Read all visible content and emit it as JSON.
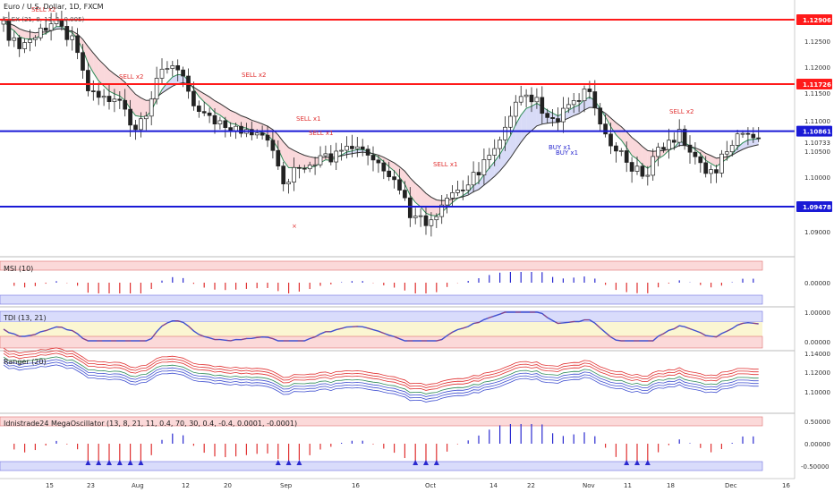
{
  "main": {
    "title": "Euro / U.S. Dollar, 1D, FXCM",
    "indicator": "CLEX (21, 8, 13, 1, 0.005)",
    "price_axis": [
      "1.12500",
      "1.12000",
      "1.11500",
      "1.11000",
      "1.10500",
      "1.10000",
      "1.09000"
    ],
    "price_tag_current": "1.10733",
    "levels": [
      {
        "value": 1.12906,
        "label": "1.12906",
        "color": "#ff1a1a"
      },
      {
        "value": 1.11726,
        "label": "1.11726",
        "color": "#ff1a1a"
      },
      {
        "value": 1.10861,
        "label": "1.10861",
        "color": "#1a1ad6"
      },
      {
        "value": 1.09478,
        "label": "1.09478",
        "color": "#1a1ad6"
      }
    ],
    "annotations": [
      {
        "text": "SELL x2"
      },
      {
        "text": "SELL x2"
      },
      {
        "text": "SELL x2"
      },
      {
        "text": "SELL x1"
      },
      {
        "text": "SELL x1"
      },
      {
        "text": "SELL x1"
      },
      {
        "text": "SELL x2"
      },
      {
        "text": "BUY x1"
      },
      {
        "text": "BUY x1"
      }
    ]
  },
  "panels": [
    {
      "title": "MSI (10)",
      "axis": [
        "0.00000"
      ]
    },
    {
      "title": "TDI (13, 21)",
      "axis": [
        "1.00000",
        "0.00000"
      ]
    },
    {
      "title": "Ranger (20)",
      "axis": [
        "1.14000",
        "1.12000",
        "1.10000"
      ]
    },
    {
      "title": "Idnistrade24 MegaOscillator (13, 8, 21, 11, 0.4, 70, 30, 0.4, -0.4, 0.0001, -0.0001)",
      "axis": [
        "0.50000",
        "0.00000",
        "-0.50000"
      ]
    }
  ],
  "time_axis": [
    "15",
    "23",
    "Aug",
    "12",
    "20",
    "Sep",
    "16",
    "Oct",
    "14",
    "22",
    "Nov",
    "11",
    "18",
    "Dec",
    "16"
  ],
  "colors": {
    "up": "#ffffff",
    "down": "#222222",
    "sell": "#e03030",
    "buy": "#2a2ad0"
  }
}
